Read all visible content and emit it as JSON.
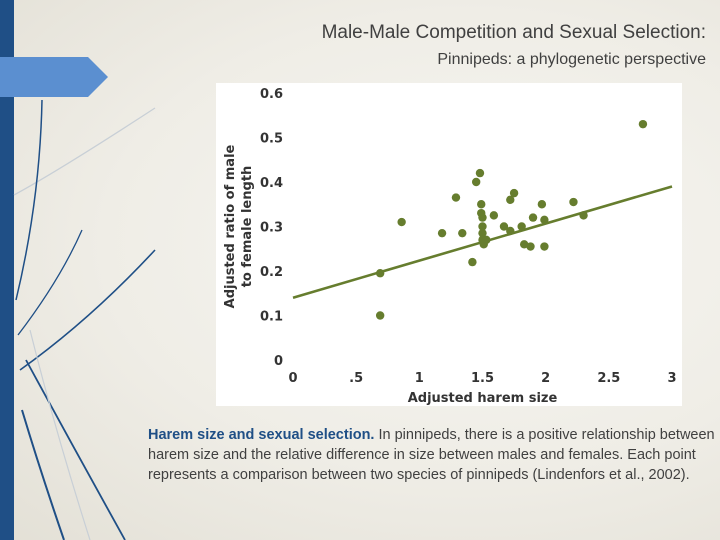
{
  "title": "Male-Male Competition and Sexual Selection:",
  "subtitle": "Pinnipeds: a phylogenetic perspective",
  "caption": {
    "bold": "Harem size and sexual selection.",
    "text": " In pinnipeds, there is a positive relationship between harem size and the relative difference in size between males and females. Each point represents a comparison between two species of pinnipeds (Lindenfors et al., 2002)."
  },
  "colors": {
    "accent": "#1f4f86",
    "points": "#667d2e",
    "trendline": "#667d2e"
  },
  "chart_data": {
    "type": "scatter",
    "xlabel": "Adjusted harem size",
    "ylabel_line1": "Adjusted ratio of male",
    "ylabel_line2": "to female length",
    "xlim": [
      0,
      3
    ],
    "ylim": [
      0,
      0.6
    ],
    "x_ticks": [
      0,
      0.5,
      1,
      1.5,
      2,
      2.5,
      3
    ],
    "x_tick_labels": [
      "0",
      ".5",
      "1",
      "1.5",
      "2",
      "2.5",
      "3"
    ],
    "y_ticks": [
      0,
      0.1,
      0.2,
      0.3,
      0.4,
      0.5,
      0.6
    ],
    "y_tick_labels": [
      "0",
      "0.1",
      "0.2",
      "0.3",
      "0.4",
      "0.5",
      "0.6"
    ],
    "grid": false,
    "points": [
      {
        "x": 0.69,
        "y": 0.1
      },
      {
        "x": 0.69,
        "y": 0.195
      },
      {
        "x": 0.86,
        "y": 0.31
      },
      {
        "x": 1.18,
        "y": 0.285
      },
      {
        "x": 1.29,
        "y": 0.365
      },
      {
        "x": 1.34,
        "y": 0.285
      },
      {
        "x": 1.42,
        "y": 0.22
      },
      {
        "x": 1.45,
        "y": 0.4
      },
      {
        "x": 1.48,
        "y": 0.42
      },
      {
        "x": 1.49,
        "y": 0.35
      },
      {
        "x": 1.49,
        "y": 0.33
      },
      {
        "x": 1.5,
        "y": 0.32
      },
      {
        "x": 1.5,
        "y": 0.3
      },
      {
        "x": 1.5,
        "y": 0.285
      },
      {
        "x": 1.5,
        "y": 0.27
      },
      {
        "x": 1.51,
        "y": 0.26
      },
      {
        "x": 1.53,
        "y": 0.27
      },
      {
        "x": 1.59,
        "y": 0.325
      },
      {
        "x": 1.67,
        "y": 0.3
      },
      {
        "x": 1.72,
        "y": 0.29
      },
      {
        "x": 1.72,
        "y": 0.36
      },
      {
        "x": 1.75,
        "y": 0.375
      },
      {
        "x": 1.81,
        "y": 0.3
      },
      {
        "x": 1.83,
        "y": 0.26
      },
      {
        "x": 1.88,
        "y": 0.255
      },
      {
        "x": 1.9,
        "y": 0.32
      },
      {
        "x": 1.97,
        "y": 0.35
      },
      {
        "x": 1.99,
        "y": 0.315
      },
      {
        "x": 1.99,
        "y": 0.255
      },
      {
        "x": 2.22,
        "y": 0.355
      },
      {
        "x": 2.3,
        "y": 0.325
      },
      {
        "x": 2.77,
        "y": 0.53
      }
    ],
    "trendline": {
      "x0": 0,
      "y0": 0.14,
      "x1": 3,
      "y1": 0.39
    }
  }
}
